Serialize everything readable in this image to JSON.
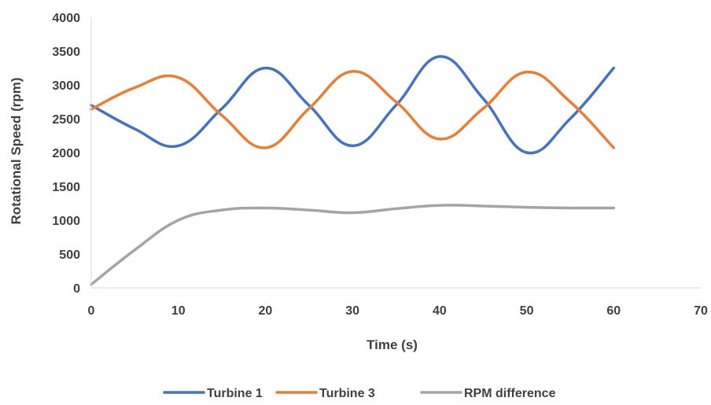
{
  "chart_data": {
    "type": "line",
    "title": "",
    "xlabel": "Time (s)",
    "ylabel": "Rotational Speed (rpm)",
    "xlim": [
      0,
      70
    ],
    "ylim": [
      0,
      4000
    ],
    "xticks": [
      0,
      10,
      20,
      30,
      40,
      50,
      60,
      70
    ],
    "yticks": [
      0,
      500,
      1000,
      1500,
      2000,
      2500,
      3000,
      3500,
      4000
    ],
    "x_tick_labels": [
      "0",
      "10",
      "20",
      "30",
      "40",
      "50",
      "60",
      "70"
    ],
    "y_tick_labels": [
      "0",
      "500",
      "1000",
      "1500",
      "2000",
      "2500",
      "3000",
      "3500",
      "4000"
    ],
    "grid": false,
    "legend_position": "bottom",
    "series": [
      {
        "name": "Turbine 1",
        "color": "#4472C4",
        "x": [
          0,
          5,
          10,
          15,
          20,
          25,
          30,
          35,
          40,
          45,
          50,
          55,
          60
        ],
        "y": [
          2700,
          2350,
          2100,
          2650,
          3250,
          2700,
          2100,
          2700,
          3420,
          2800,
          2000,
          2500,
          3250
        ]
      },
      {
        "name": "Turbine 3",
        "color": "#ED7D31",
        "x": [
          0,
          5,
          10,
          15,
          20,
          25,
          30,
          35,
          40,
          45,
          50,
          55,
          60
        ],
        "y": [
          2640,
          2960,
          3110,
          2550,
          2070,
          2650,
          3200,
          2750,
          2200,
          2650,
          3190,
          2750,
          2070
        ]
      },
      {
        "name": "RPM difference",
        "color": "#A5A5A5",
        "x": [
          0,
          5,
          10,
          15,
          20,
          25,
          30,
          35,
          40,
          45,
          50,
          55,
          60
        ],
        "y": [
          50,
          560,
          1000,
          1150,
          1180,
          1150,
          1110,
          1170,
          1220,
          1210,
          1190,
          1180,
          1180
        ]
      }
    ]
  }
}
